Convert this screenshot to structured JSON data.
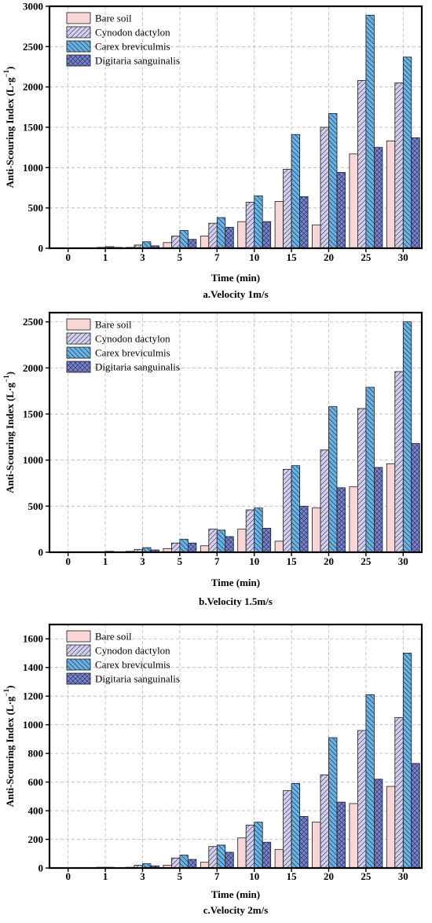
{
  "legend": [
    "Bare soil",
    "Cynodon dactylon",
    "Carex breviculmis",
    "Digitaria sanguinalis"
  ],
  "series_colors": [
    "#f9d6d6",
    "#d4d2ea",
    "#6fb2e0",
    "#7883c8"
  ],
  "chart_data": [
    {
      "type": "bar",
      "caption": "a.Velocity 1m/s",
      "xlabel": "Time (min)",
      "ylabel": "Anti-Scouring Index (L·g",
      "ylabel_sup": "−1",
      "ylabel_tail": ")",
      "categories": [
        "0",
        "1",
        "3",
        "5",
        "7",
        "10",
        "15",
        "20",
        "25",
        "30"
      ],
      "ylim": [
        0,
        3000
      ],
      "yticks": [
        0,
        500,
        1000,
        1500,
        2000,
        2500,
        3000
      ],
      "grid": true,
      "legend_position": "top-left",
      "series": [
        {
          "name": "Bare soil",
          "values": [
            0,
            0,
            10,
            70,
            150,
            330,
            580,
            290,
            1170,
            1330
          ]
        },
        {
          "name": "Cynodon dactylon",
          "values": [
            0,
            10,
            40,
            150,
            310,
            570,
            980,
            1500,
            2080,
            2050
          ]
        },
        {
          "name": "Carex breviculmis",
          "values": [
            0,
            20,
            80,
            220,
            380,
            650,
            1410,
            1670,
            2890,
            2370
          ]
        },
        {
          "name": "Digitaria sanguinalis",
          "values": [
            0,
            10,
            30,
            110,
            260,
            330,
            640,
            940,
            1250,
            1370
          ]
        }
      ]
    },
    {
      "type": "bar",
      "caption": "b.Velocity 1.5m/s",
      "xlabel": "Time (min)",
      "ylabel": "Anti-Scouring Index (L·g",
      "ylabel_sup": "−1",
      "ylabel_tail": ")",
      "categories": [
        "0",
        "1",
        "3",
        "5",
        "7",
        "10",
        "15",
        "20",
        "25",
        "30"
      ],
      "ylim": [
        0,
        2600
      ],
      "yticks": [
        0,
        500,
        1000,
        1500,
        2000,
        2500
      ],
      "grid": true,
      "legend_position": "top-left",
      "series": [
        {
          "name": "Bare soil",
          "values": [
            0,
            0,
            10,
            40,
            70,
            250,
            120,
            480,
            710,
            960
          ]
        },
        {
          "name": "Cynodon dactylon",
          "values": [
            0,
            5,
            30,
            100,
            250,
            460,
            900,
            1110,
            1560,
            1960
          ]
        },
        {
          "name": "Carex breviculmis",
          "values": [
            0,
            10,
            50,
            140,
            240,
            480,
            940,
            1580,
            1790,
            2500
          ]
        },
        {
          "name": "Digitaria sanguinalis",
          "values": [
            0,
            5,
            25,
            100,
            170,
            260,
            500,
            700,
            920,
            1180
          ]
        }
      ]
    },
    {
      "type": "bar",
      "caption": "c.Velocity 2m/s",
      "xlabel": "Time (min)",
      "ylabel": "Anti-Scouring Index (L·g",
      "ylabel_sup": "−1",
      "ylabel_tail": ")",
      "categories": [
        "0",
        "1",
        "3",
        "5",
        "7",
        "10",
        "15",
        "20",
        "25",
        "30"
      ],
      "ylim": [
        0,
        1700
      ],
      "yticks": [
        0,
        200,
        400,
        600,
        800,
        1000,
        1200,
        1400,
        1600
      ],
      "grid": true,
      "legend_position": "top-left",
      "series": [
        {
          "name": "Bare soil",
          "values": [
            0,
            0,
            5,
            20,
            40,
            210,
            130,
            320,
            450,
            570
          ]
        },
        {
          "name": "Cynodon dactylon",
          "values": [
            0,
            5,
            20,
            70,
            150,
            300,
            540,
            650,
            960,
            1050
          ]
        },
        {
          "name": "Carex breviculmis",
          "values": [
            0,
            5,
            30,
            90,
            160,
            320,
            590,
            910,
            1210,
            1500
          ]
        },
        {
          "name": "Digitaria sanguinalis",
          "values": [
            0,
            3,
            15,
            60,
            110,
            180,
            360,
            460,
            620,
            730
          ]
        }
      ]
    }
  ]
}
